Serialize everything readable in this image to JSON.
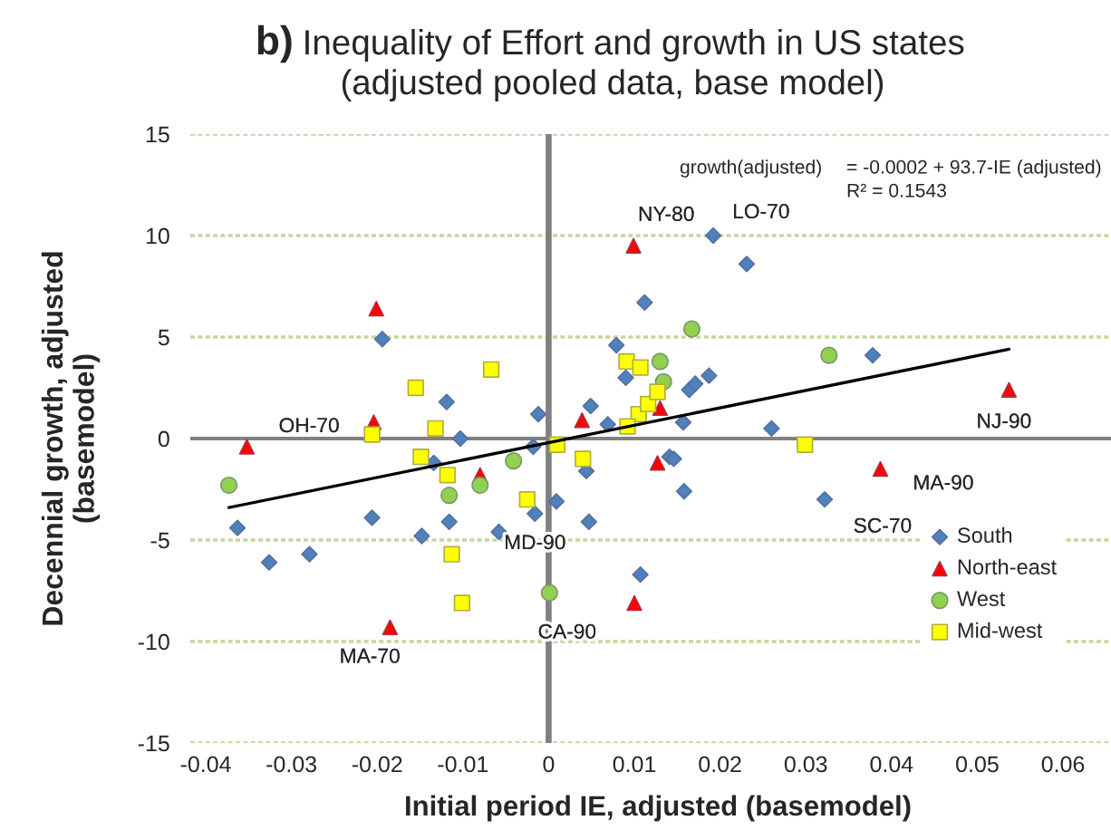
{
  "chart_data": {
    "type": "scatter",
    "title": "b) Inequality of Effort and growth in US states",
    "subtitle": "(adjusted pooled data, base model)",
    "xlabel": "Initial period IE, adjusted (basemodel)",
    "ylabel": "Decennial growth, adjusted\n(basemodel)",
    "xlim": [
      -0.0418,
      0.0656
    ],
    "ylim": [
      -15,
      15
    ],
    "xticks": [
      -0.04,
      -0.03,
      -0.02,
      -0.01,
      0,
      0.01,
      0.02,
      0.03,
      0.04,
      0.05,
      0.06
    ],
    "yticks": [
      -15,
      -10,
      -5,
      0,
      5,
      10,
      15
    ],
    "grid": "y",
    "legend": "bottom right",
    "ref_lines": [
      {
        "axis": "x",
        "value": 0,
        "color": "#808080"
      },
      {
        "axis": "y",
        "value": 0,
        "color": "#808080"
      }
    ],
    "annotations": [
      "growth(adjusted)",
      "= -0.0002 + 93.7-IE (adjusted)",
      "R² = 0.1543",
      {
        "text": "NY-80",
        "x": 0.0099,
        "y": 9.5
      },
      {
        "text": "LO-70",
        "x": 0.0192,
        "y": 10.0
      },
      {
        "text": "NJ-90",
        "x": 0.0537,
        "y": 2.4
      },
      {
        "text": "MA-90",
        "x": 0.0387,
        "y": -1.5
      },
      {
        "text": "SC-70",
        "x": 0.0322,
        "y": -3.0
      },
      {
        "text": "OH-70",
        "x": -0.0206,
        "y": 0.2
      },
      {
        "text": "MD-90",
        "x": -0.0016,
        "y": -3.7
      },
      {
        "text": "CA-90",
        "x": 0.0001,
        "y": -7.6
      },
      {
        "text": "MA-70",
        "x": -0.0185,
        "y": -9.3
      }
    ],
    "series": [
      {
        "name": "South",
        "color": "#4f81bd",
        "marker": "diamond",
        "x": [
          -0.0194,
          -0.0119,
          -0.0012,
          -0.0103,
          0.0049,
          0.0069,
          0.0079,
          0.009,
          0.0112,
          0.0192,
          0.0231,
          0.0378,
          0.0187,
          0.0164,
          0.0171,
          0.0157,
          0.026,
          -0.0018,
          0.0044,
          0.0009,
          -0.0016,
          -0.0058,
          0.0047,
          -0.0116,
          -0.0148,
          -0.0206,
          -0.0363,
          -0.0326,
          -0.0279,
          0.0107,
          -0.0134,
          0.0141,
          0.0146,
          0.0158,
          0.0322
        ],
        "values": [
          4.9,
          1.8,
          1.2,
          0.0,
          1.6,
          0.7,
          4.6,
          3.0,
          6.7,
          10.0,
          8.6,
          4.1,
          3.1,
          2.4,
          2.7,
          0.8,
          0.5,
          -0.4,
          -1.6,
          -3.1,
          -3.7,
          -4.6,
          -4.1,
          -4.1,
          -4.8,
          -3.9,
          -4.4,
          -6.1,
          -5.7,
          -6.7,
          -1.2,
          -0.9,
          -1.0,
          -2.6,
          -3.0
        ]
      },
      {
        "name": "North-east",
        "color": "#ff0000",
        "marker": "triangle",
        "x": [
          -0.0201,
          0.0099,
          -0.0204,
          0.0039,
          -0.0352,
          -0.008,
          -0.0185,
          0.01,
          0.013,
          0.0127,
          0.0537,
          0.0387
        ],
        "values": [
          6.4,
          9.5,
          0.8,
          0.9,
          -0.4,
          -1.8,
          -9.3,
          -8.1,
          1.5,
          -1.2,
          2.4,
          -1.5
        ]
      },
      {
        "name": "West",
        "color": "#92d050",
        "marker": "circle",
        "x": [
          -0.0373,
          -0.0041,
          -0.008,
          -0.0116,
          0.0001,
          0.0167,
          0.0327,
          0.013,
          0.0134
        ],
        "values": [
          -2.3,
          -1.1,
          -2.3,
          -2.8,
          -7.6,
          5.4,
          4.1,
          3.8,
          2.8
        ]
      },
      {
        "name": "Mid-west",
        "color": "#ffff00",
        "marker": "square",
        "x": [
          -0.0067,
          -0.0155,
          -0.0132,
          -0.0206,
          0.001,
          0.0091,
          0.0107,
          0.0105,
          0.0116,
          0.0092,
          0.0127,
          0.0299,
          -0.0118,
          -0.0149,
          0.004,
          -0.0025,
          -0.0113,
          -0.0101
        ],
        "values": [
          3.4,
          2.5,
          0.5,
          0.2,
          -0.3,
          3.8,
          3.5,
          1.2,
          1.7,
          0.6,
          2.3,
          -0.3,
          -1.8,
          -0.9,
          -1.0,
          -3.0,
          -5.7,
          -8.1
        ]
      },
      {
        "type": "line",
        "color": "#000000",
        "x": [
          -0.0373,
          0.0537
        ],
        "values": [
          -3.4,
          4.4
        ]
      }
    ]
  }
}
